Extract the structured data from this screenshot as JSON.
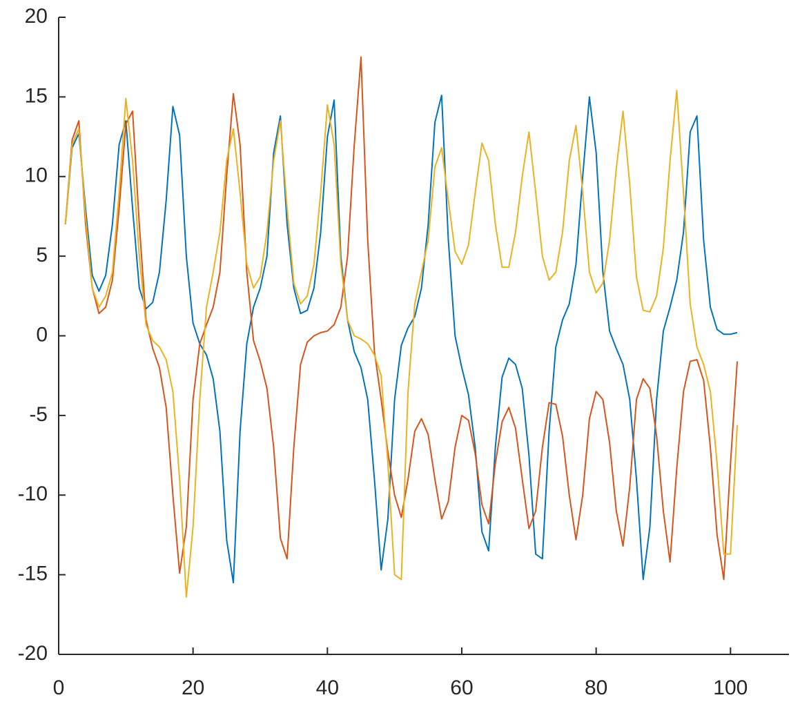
{
  "chart_data": {
    "type": "line",
    "x": [
      1,
      2,
      3,
      4,
      5,
      6,
      7,
      8,
      9,
      10,
      11,
      12,
      13,
      14,
      15,
      16,
      17,
      18,
      19,
      20,
      21,
      22,
      23,
      24,
      25,
      26,
      27,
      28,
      29,
      30,
      31,
      32,
      33,
      34,
      35,
      36,
      37,
      38,
      39,
      40,
      41,
      42,
      43,
      44,
      45,
      46,
      47,
      48,
      49,
      50,
      51,
      52,
      53,
      54,
      55,
      56,
      57,
      58,
      59,
      60,
      61,
      62,
      63,
      64,
      65,
      66,
      67,
      68,
      69,
      70,
      71,
      72,
      73,
      74,
      75,
      76,
      77,
      78,
      79,
      80,
      81,
      82,
      83,
      84,
      85,
      86,
      87,
      88,
      89,
      90,
      91,
      92,
      93,
      94,
      95,
      96,
      97,
      98,
      99,
      100,
      101
    ],
    "series": [
      {
        "color": "#0072bd",
        "values": [
          7,
          11.8,
          12.7,
          8,
          3.8,
          2.8,
          3.8,
          7,
          12,
          13.5,
          8,
          3,
          1.7,
          2.1,
          4,
          8.5,
          14.4,
          12.6,
          5,
          0.8,
          -0.5,
          -1.2,
          -2.7,
          -6,
          -12.8,
          -15.5,
          -6,
          -0.5,
          1.8,
          3,
          5,
          11.5,
          13.8,
          7,
          3,
          1.4,
          1.6,
          3,
          6.5,
          12.5,
          14.8,
          5,
          1,
          -1,
          -2,
          -4,
          -9,
          -14.7,
          -11.5,
          -4,
          -0.6,
          0.5,
          1.2,
          3,
          7,
          13.4,
          15.1,
          6,
          0,
          -2,
          -3.7,
          -7,
          -12.3,
          -13.5,
          -7,
          -2.6,
          -1.4,
          -1.8,
          -3.3,
          -7.5,
          -13.7,
          -14,
          -6,
          -0.7,
          1,
          2,
          4.5,
          10,
          15,
          11.5,
          4,
          0.3,
          -0.8,
          -1.8,
          -4,
          -9,
          -15.3,
          -12,
          -4,
          0.3,
          1.8,
          3.5,
          6.5,
          12.8,
          13.8,
          6,
          1.8,
          0.4,
          0.1,
          0.1,
          0.2
        ]
      },
      {
        "color": "#d95319",
        "values": [
          7,
          12.3,
          13.5,
          7,
          3,
          1.4,
          1.8,
          3.5,
          8,
          13.3,
          14.1,
          7,
          1,
          -0.8,
          -2,
          -4.5,
          -10,
          -14.9,
          -12,
          -4,
          -0.5,
          0.7,
          1.8,
          4,
          10,
          15.2,
          12,
          4,
          -0.3,
          -1.6,
          -3.3,
          -7,
          -12.7,
          -14,
          -7,
          -1.8,
          -0.4,
          0,
          0.2,
          0.3,
          0.7,
          1.8,
          5,
          12,
          17.5,
          6,
          -1,
          -4,
          -7.3,
          -10,
          -11.4,
          -9,
          -6,
          -5.2,
          -6.2,
          -9,
          -11.5,
          -10.4,
          -7,
          -5,
          -5.3,
          -7.4,
          -10.6,
          -11.8,
          -8,
          -5.4,
          -4.5,
          -5.8,
          -9,
          -12.1,
          -11,
          -7,
          -4.2,
          -4.3,
          -6.3,
          -10,
          -12.8,
          -10,
          -5.2,
          -3.5,
          -4,
          -6.7,
          -11,
          -13.2,
          -9.5,
          -4,
          -2.7,
          -3.3,
          -6.3,
          -11,
          -14.2,
          -8.3,
          -3.5,
          -1.6,
          -1.5,
          -2.8,
          -7,
          -12.5,
          -15.3,
          -8,
          -1.6
        ]
      },
      {
        "color": "#edb120",
        "values": [
          7,
          12,
          13,
          7.5,
          3,
          1.8,
          2.5,
          4,
          9,
          14.9,
          11,
          5,
          0.7,
          -0.3,
          -0.7,
          -1.5,
          -3.5,
          -9,
          -16.4,
          -12,
          -4,
          1.8,
          4,
          6.5,
          11,
          13,
          9,
          4.5,
          3,
          3.7,
          6.5,
          11,
          13.5,
          8,
          3.3,
          2,
          2.5,
          4.5,
          9,
          14.5,
          12,
          4.5,
          1,
          0,
          -0.2,
          -0.5,
          -1.2,
          -2.5,
          -8,
          -15,
          -15.3,
          -3.5,
          2,
          4,
          6,
          10.6,
          11.8,
          8.5,
          5.3,
          4.5,
          5.7,
          9,
          12.1,
          11,
          7,
          4.3,
          4.3,
          6.5,
          10,
          12.8,
          9,
          5,
          3.5,
          4,
          6.5,
          11,
          13.2,
          9,
          4,
          2.7,
          3.3,
          6,
          10.5,
          14.1,
          9.5,
          3.7,
          1.6,
          1.5,
          2.5,
          5.5,
          11,
          15.4,
          9,
          2,
          -0.7,
          -1.8,
          -3.5,
          -8,
          -13.7,
          -13.7,
          -5.6
        ]
      }
    ],
    "xlim": [
      0,
      108.7
    ],
    "xticks": [
      0,
      20,
      40,
      60,
      80,
      100
    ],
    "ylim": [
      -20,
      20
    ],
    "yticks": [
      -20,
      -15,
      -10,
      -5,
      0,
      5,
      10,
      15,
      20
    ]
  }
}
